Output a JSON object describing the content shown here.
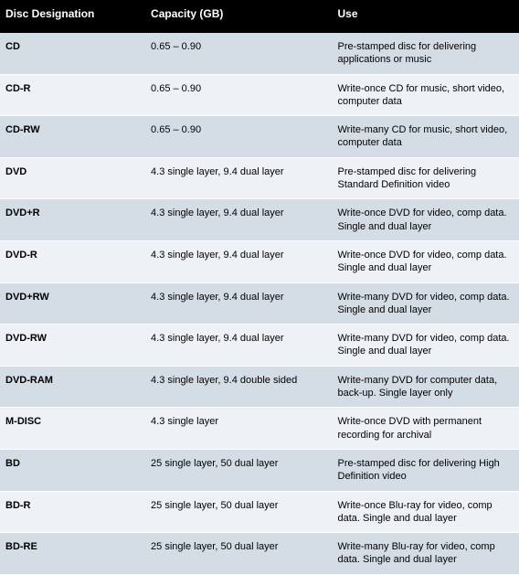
{
  "table": {
    "columns": [
      "Disc Designation",
      "Capacity (GB)",
      "Use"
    ],
    "column_keys": [
      "des",
      "cap",
      "use"
    ],
    "header_bg": "#000000",
    "header_color": "#ffffff",
    "row_colors": [
      "#d4dde6",
      "#eef2f6"
    ],
    "border_color": "#ffffff",
    "font_family": "Arial, Helvetica, sans-serif",
    "header_fontsize": 12,
    "cell_fontsize": 11,
    "col_widths_pct": [
      28,
      36,
      36
    ],
    "rows": [
      {
        "des": "CD",
        "cap": "0.65 – 0.90",
        "use": "Pre-stamped disc for delivering applications or music"
      },
      {
        "des": "CD-R",
        "cap": "0.65 – 0.90",
        "use": "Write-once CD for music, short video, computer data"
      },
      {
        "des": "CD-RW",
        "cap": "0.65 – 0.90",
        "use": "Write-many CD for music, short video, computer data"
      },
      {
        "des": "DVD",
        "cap": "4.3 single layer, 9.4 dual layer",
        "use": "Pre-stamped disc for delivering Standard Definition video"
      },
      {
        "des": "DVD+R",
        "cap": "4.3 single layer, 9.4 dual layer",
        "use": "Write-once DVD for video, comp data. Single and dual layer"
      },
      {
        "des": "DVD-R",
        "cap": "4.3 single layer, 9.4 dual layer",
        "use": "Write-once DVD for video, comp data. Single and dual layer"
      },
      {
        "des": "DVD+RW",
        "cap": "4.3 single layer, 9.4 dual layer",
        "use": "Write-many DVD for video, comp data. Single and dual layer"
      },
      {
        "des": "DVD-RW",
        "cap": "4.3 single layer, 9.4 dual layer",
        "use": "Write-many DVD for video, comp data. Single and dual layer"
      },
      {
        "des": "DVD-RAM",
        "cap": "4.3 single layer, 9.4 double sided",
        "use": "Write-many DVD for computer data, back-up. Single layer only"
      },
      {
        "des": "M-DISC",
        "cap": "4.3 single layer",
        "use": "Write-once DVD with permanent recording for archival"
      },
      {
        "des": "BD",
        "cap": "25 single layer, 50 dual layer",
        "use": "Pre-stamped disc for delivering High Definition video"
      },
      {
        "des": "BD-R",
        "cap": "25 single layer, 50 dual layer",
        "use": "Write-once Blu-ray for video, comp data. Single and dual layer"
      },
      {
        "des": "BD-RE",
        "cap": "25 single layer, 50 dual layer",
        "use": "Write-many Blu-ray for video, comp data. Single and dual layer"
      }
    ]
  }
}
